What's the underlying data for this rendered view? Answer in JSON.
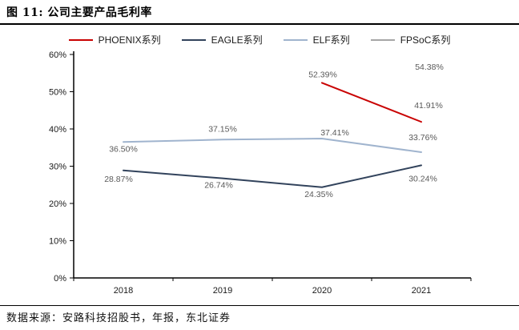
{
  "figure": {
    "title": "图 11: 公司主要产品毛利率",
    "source": "数据来源：安路科技招股书，年报，东北证券"
  },
  "chart_data": {
    "type": "line",
    "title": "公司主要产品毛利率",
    "categories": [
      "2018",
      "2019",
      "2020",
      "2021"
    ],
    "series": [
      {
        "name": "PHOENIX系列",
        "color": "#C90202",
        "values": [
          null,
          null,
          52.39,
          41.91
        ],
        "label_offsets": [
          [
            0,
            0
          ],
          [
            0,
            0
          ],
          [
            1,
            -7
          ],
          [
            9,
            -17
          ]
        ]
      },
      {
        "name": "EAGLE系列",
        "color": "#32435C",
        "values": [
          28.87,
          26.74,
          24.35,
          30.24
        ],
        "label_offsets": [
          [
            -6,
            14
          ],
          [
            -5,
            12
          ],
          [
            -4,
            12
          ],
          [
            2,
            20
          ]
        ]
      },
      {
        "name": "ELF系列",
        "color": "#A0B4CE",
        "values": [
          36.5,
          37.15,
          37.41,
          33.76
        ],
        "label_offsets": [
          [
            0,
            12
          ],
          [
            0,
            -10
          ],
          [
            16,
            -4
          ],
          [
            2,
            -15
          ]
        ]
      },
      {
        "name": "FPSoC系列",
        "color": "#A6A6A6",
        "values": [
          null,
          null,
          null,
          54.38
        ],
        "label_offsets": [
          [
            0,
            0
          ],
          [
            0,
            0
          ],
          [
            0,
            0
          ],
          [
            10,
            -7
          ]
        ]
      }
    ],
    "ylim": [
      0,
      60
    ],
    "ytick_step": 10,
    "ytick_suffix": "%",
    "value_suffix": "%",
    "value_decimals": 2,
    "grid": false,
    "legend_position": "top",
    "axis_color": "#000000",
    "data_label_color": "#595959"
  }
}
